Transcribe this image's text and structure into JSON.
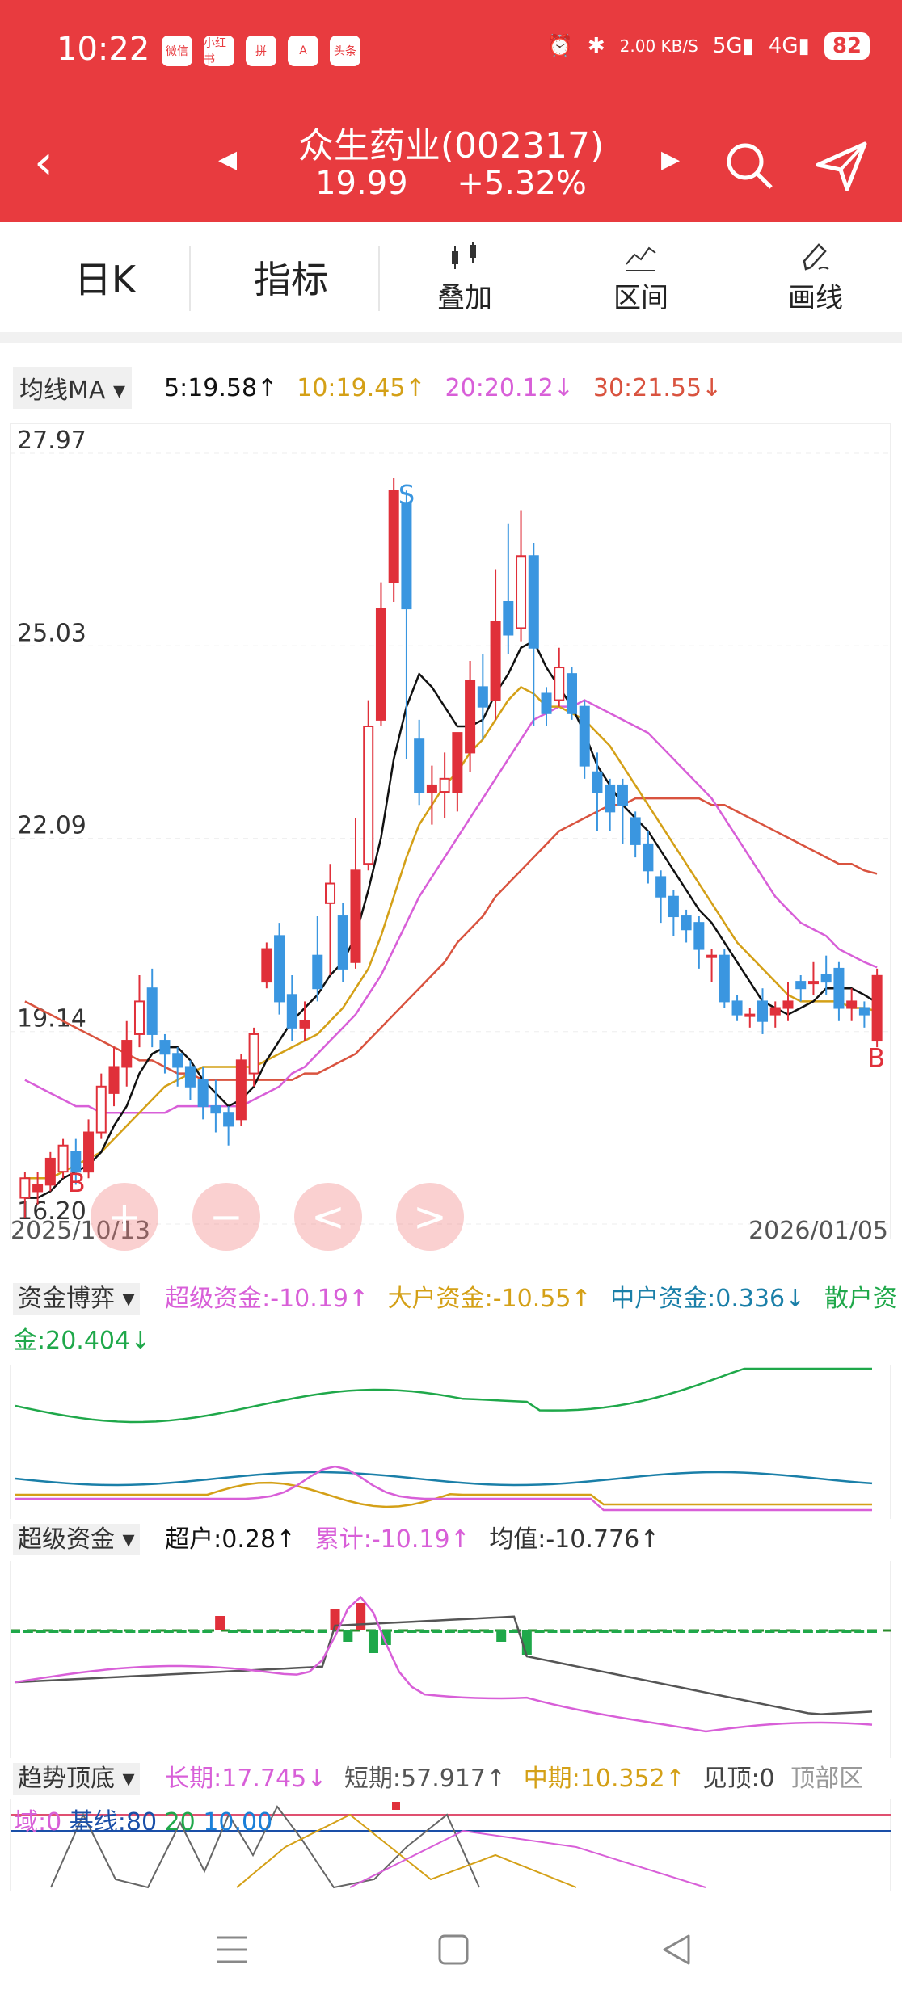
{
  "status": {
    "time": "10:22",
    "apps": [
      "微信",
      "小红书",
      "拼",
      "A",
      "头条"
    ],
    "net_speed": "2.00 KB/S",
    "battery": "82"
  },
  "header": {
    "title": "众生药业(002317)",
    "price": "19.99",
    "change": "+5.32%"
  },
  "toolbar": {
    "period": "日K",
    "indicator": "指标",
    "overlay": "叠加",
    "range": "区间",
    "draw": "画线"
  },
  "ma": {
    "selector": "均线MA",
    "ma5": "5:19.58↑",
    "ma10": "10:19.45↑",
    "ma20": "20:20.12↓",
    "ma30": "30:21.55↓",
    "colors": {
      "ma5": "#111111",
      "ma10": "#d4a017",
      "ma20": "#d85fd8",
      "ma30": "#d9533f",
      "up": "#e0303a",
      "down": "#3a96e0"
    }
  },
  "chart_data": {
    "type": "candlestick",
    "y_ticks": [
      "27.97",
      "25.03",
      "22.09",
      "19.14",
      "16.20"
    ],
    "ylim": [
      16.2,
      27.97
    ],
    "x_start": "2025/10/13",
    "x_end": "2026/01/05",
    "marks": {
      "buy": "B",
      "sell": "S"
    },
    "candles": [
      [
        16.6,
        16.9,
        16.3,
        17.0
      ],
      [
        16.7,
        16.8,
        16.5,
        17.0
      ],
      [
        16.8,
        17.2,
        16.7,
        17.3
      ],
      [
        17.0,
        17.4,
        16.9,
        17.5
      ],
      [
        17.3,
        17.0,
        16.8,
        17.5
      ],
      [
        17.0,
        17.6,
        16.9,
        17.8
      ],
      [
        17.6,
        18.3,
        17.5,
        18.5
      ],
      [
        18.2,
        18.6,
        18.0,
        18.9
      ],
      [
        18.6,
        19.0,
        18.3,
        19.3
      ],
      [
        19.1,
        19.6,
        18.9,
        20.0
      ],
      [
        19.8,
        19.1,
        18.9,
        20.1
      ],
      [
        19.0,
        18.8,
        18.5,
        19.1
      ],
      [
        18.8,
        18.6,
        18.3,
        18.9
      ],
      [
        18.6,
        18.3,
        18.1,
        18.7
      ],
      [
        18.4,
        18.0,
        17.8,
        18.6
      ],
      [
        18.0,
        17.9,
        17.6,
        18.4
      ],
      [
        17.9,
        17.7,
        17.4,
        18.0
      ],
      [
        17.8,
        18.7,
        17.7,
        18.8
      ],
      [
        18.5,
        19.1,
        18.3,
        19.2
      ],
      [
        19.9,
        20.4,
        19.8,
        20.5
      ],
      [
        20.6,
        19.6,
        19.4,
        20.8
      ],
      [
        19.7,
        19.2,
        19.0,
        20.0
      ],
      [
        19.2,
        19.3,
        19.0,
        19.6
      ],
      [
        20.3,
        19.8,
        19.6,
        20.9
      ],
      [
        21.1,
        21.4,
        20.0,
        21.7
      ],
      [
        20.9,
        20.1,
        19.9,
        21.1
      ],
      [
        20.2,
        21.6,
        20.1,
        22.4
      ],
      [
        21.7,
        23.8,
        21.6,
        24.2
      ],
      [
        23.9,
        25.6,
        23.8,
        26.0
      ],
      [
        26.0,
        27.4,
        25.7,
        27.6
      ],
      [
        27.2,
        25.6,
        23.3,
        27.4
      ],
      [
        23.6,
        22.8,
        22.6,
        23.9
      ],
      [
        22.8,
        22.9,
        22.3,
        23.2
      ],
      [
        22.8,
        23.0,
        22.4,
        23.4
      ],
      [
        22.8,
        23.7,
        22.5,
        23.7
      ],
      [
        23.4,
        24.5,
        23.1,
        24.8
      ],
      [
        24.4,
        24.1,
        23.6,
        24.9
      ],
      [
        24.2,
        25.4,
        23.9,
        26.2
      ],
      [
        25.7,
        25.2,
        24.9,
        26.9
      ],
      [
        25.3,
        26.4,
        25.1,
        27.1
      ],
      [
        26.4,
        25.0,
        23.8,
        26.6
      ],
      [
        24.3,
        24.0,
        23.8,
        24.4
      ],
      [
        24.2,
        24.7,
        24.1,
        25.0
      ],
      [
        24.6,
        24.0,
        23.9,
        24.7
      ],
      [
        24.1,
        23.2,
        23.0,
        24.2
      ],
      [
        23.1,
        22.8,
        22.2,
        23.4
      ],
      [
        22.9,
        22.5,
        22.2,
        23.0
      ],
      [
        22.9,
        22.6,
        22.0,
        23.0
      ],
      [
        22.4,
        22.0,
        21.8,
        22.5
      ],
      [
        22.0,
        21.6,
        21.4,
        22.2
      ],
      [
        21.5,
        21.2,
        20.8,
        21.6
      ],
      [
        21.2,
        20.9,
        20.6,
        21.3
      ],
      [
        20.9,
        20.7,
        20.5,
        21.0
      ],
      [
        20.8,
        20.4,
        20.1,
        20.9
      ],
      [
        20.3,
        20.3,
        19.9,
        20.4
      ],
      [
        20.3,
        19.6,
        19.5,
        20.4
      ],
      [
        19.6,
        19.4,
        19.3,
        19.7
      ],
      [
        19.4,
        19.4,
        19.2,
        19.5
      ],
      [
        19.6,
        19.3,
        19.1,
        19.8
      ],
      [
        19.4,
        19.5,
        19.2,
        19.6
      ],
      [
        19.5,
        19.6,
        19.3,
        19.9
      ],
      [
        19.9,
        19.8,
        19.6,
        20.0
      ],
      [
        19.9,
        19.9,
        19.7,
        20.2
      ],
      [
        20.0,
        19.9,
        19.7,
        20.3
      ],
      [
        20.1,
        19.5,
        19.3,
        20.2
      ],
      [
        19.5,
        19.6,
        19.3,
        19.8
      ],
      [
        19.5,
        19.4,
        19.2,
        19.6
      ],
      [
        19.0,
        19.99,
        18.9,
        20.1
      ]
    ],
    "ma5_line": [
      16.6,
      16.6,
      16.7,
      16.9,
      17.0,
      17.1,
      17.3,
      17.7,
      18.0,
      18.5,
      18.8,
      18.9,
      18.9,
      18.7,
      18.4,
      18.2,
      18.0,
      18.1,
      18.3,
      18.7,
      19.0,
      19.3,
      19.5,
      19.7,
      20.0,
      20.2,
      20.6,
      21.3,
      22.1,
      23.3,
      24.1,
      24.6,
      24.4,
      24.1,
      23.8,
      23.8,
      23.9,
      24.3,
      24.6,
      25.0,
      25.1,
      24.7,
      24.4,
      24.1,
      23.7,
      23.2,
      22.9,
      22.6,
      22.4,
      22.2,
      21.9,
      21.6,
      21.3,
      21.0,
      20.8,
      20.5,
      20.2,
      19.9,
      19.6,
      19.5,
      19.4,
      19.5,
      19.6,
      19.8,
      19.8,
      19.8,
      19.7,
      19.58
    ],
    "ma10_line": [
      16.9,
      16.9,
      16.9,
      17.0,
      17.1,
      17.2,
      17.3,
      17.5,
      17.7,
      17.9,
      18.1,
      18.3,
      18.4,
      18.5,
      18.6,
      18.6,
      18.6,
      18.6,
      18.6,
      18.7,
      18.8,
      18.9,
      19.0,
      19.1,
      19.3,
      19.5,
      19.8,
      20.1,
      20.6,
      21.2,
      21.8,
      22.3,
      22.6,
      22.9,
      23.1,
      23.4,
      23.6,
      23.9,
      24.2,
      24.4,
      24.3,
      24.1,
      24.1,
      24.0,
      23.9,
      23.7,
      23.5,
      23.2,
      22.9,
      22.6,
      22.3,
      22.0,
      21.7,
      21.4,
      21.1,
      20.8,
      20.5,
      20.3,
      20.1,
      19.9,
      19.7,
      19.6,
      19.6,
      19.6,
      19.6,
      19.5,
      19.5,
      19.45
    ],
    "ma20_line": [
      18.4,
      18.3,
      18.2,
      18.1,
      18.0,
      18.0,
      17.9,
      17.9,
      17.9,
      17.9,
      17.9,
      17.9,
      18.0,
      18.0,
      18.0,
      18.0,
      18.0,
      18.0,
      18.1,
      18.2,
      18.3,
      18.5,
      18.6,
      18.8,
      19.0,
      19.2,
      19.4,
      19.7,
      20.0,
      20.4,
      20.8,
      21.2,
      21.5,
      21.8,
      22.1,
      22.4,
      22.7,
      23.0,
      23.3,
      23.6,
      23.9,
      24.0,
      24.1,
      24.1,
      24.2,
      24.1,
      24.0,
      23.9,
      23.8,
      23.7,
      23.5,
      23.3,
      23.1,
      22.9,
      22.7,
      22.4,
      22.1,
      21.8,
      21.5,
      21.2,
      21.0,
      20.8,
      20.7,
      20.6,
      20.4,
      20.3,
      20.2,
      20.12
    ],
    "ma30_line": [
      19.6,
      19.5,
      19.4,
      19.3,
      19.2,
      19.1,
      19.0,
      18.9,
      18.8,
      18.7,
      18.7,
      18.6,
      18.5,
      18.5,
      18.4,
      18.4,
      18.4,
      18.4,
      18.4,
      18.4,
      18.4,
      18.4,
      18.5,
      18.5,
      18.6,
      18.7,
      18.8,
      19.0,
      19.2,
      19.4,
      19.6,
      19.8,
      20.0,
      20.2,
      20.5,
      20.7,
      20.9,
      21.2,
      21.4,
      21.6,
      21.8,
      22.0,
      22.2,
      22.3,
      22.4,
      22.5,
      22.6,
      22.6,
      22.7,
      22.7,
      22.7,
      22.7,
      22.7,
      22.7,
      22.6,
      22.6,
      22.5,
      22.4,
      22.3,
      22.2,
      22.1,
      22.0,
      21.9,
      21.8,
      21.7,
      21.7,
      21.6,
      21.55
    ]
  },
  "capital_game": {
    "name": "资金博弈",
    "super": "超级资金:-10.19↑",
    "large": "大户资金:-10.55↑",
    "medium": "中户资金:0.336↓",
    "retail": "散户资金:20.404↓"
  },
  "super_capital": {
    "name": "超级资金",
    "super_user": "超户:0.28↑",
    "cumulative": "累计:-10.19↑",
    "mean": "均值:-10.776↑"
  },
  "trend": {
    "name": "趋势顶底",
    "long": "长期:17.745↓",
    "short": "短期:57.917↑",
    "mid": "中期:10.352↑",
    "top": "见顶:0",
    "zone": "顶部区",
    "domain_label": "域:0",
    "baseline": "基线:80",
    "l20": "20",
    "l10": "10.00"
  },
  "controls": {
    "zoom_in": "+",
    "zoom_out": "−",
    "prev": "<",
    "next": ">"
  }
}
